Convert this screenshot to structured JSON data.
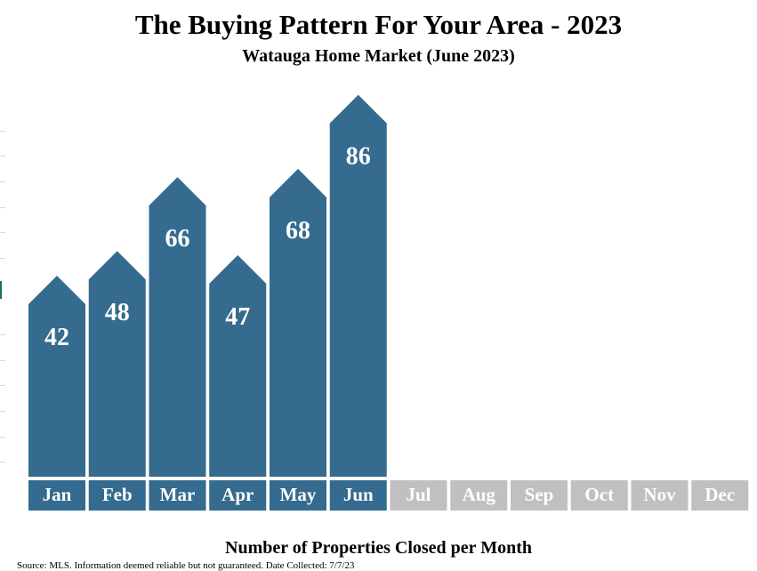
{
  "chart_data": {
    "type": "bar",
    "title": "The Buying Pattern For Your Area - 2023",
    "subtitle": "Watauga Home Market (June 2023)",
    "xlabel": "Number of Properties Closed per Month",
    "categories": [
      "Jan",
      "Feb",
      "Mar",
      "Apr",
      "May",
      "Jun",
      "Jul",
      "Aug",
      "Sep",
      "Oct",
      "Nov",
      "Dec"
    ],
    "values": [
      42,
      48,
      66,
      47,
      68,
      86,
      null,
      null,
      null,
      null,
      null,
      null
    ],
    "ylim": [
      0,
      100
    ],
    "grid": false,
    "legend": "none"
  },
  "source_note": "Source: MLS. Information deemed reliable but not guaranteed.  Date Collected: 7/7/23",
  "colors": {
    "active": "#346b8e",
    "inactive": "#c0c0c0",
    "label_text": "#ffffff"
  }
}
